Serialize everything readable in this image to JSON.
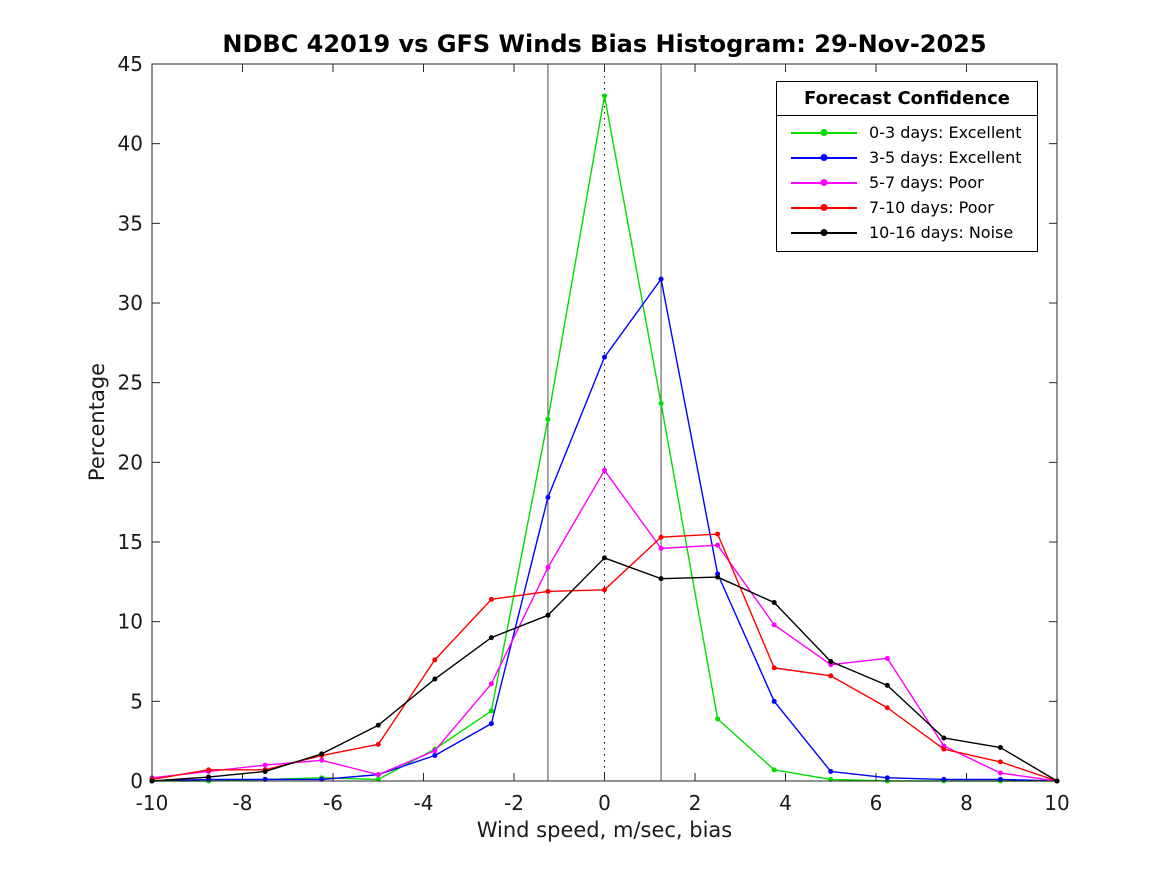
{
  "figure": {
    "title": "NDBC 42019 vs GFS Winds Bias Histogram: 29-Nov-2025",
    "xlabel": "Wind speed, m/sec, bias",
    "ylabel": "Percentage"
  },
  "legend": {
    "title": "Forecast Confidence",
    "entries": [
      {
        "label": "0-3 days: Excellent",
        "color": "#00dd00"
      },
      {
        "label": "3-5 days: Excellent",
        "color": "#0000ff"
      },
      {
        "label": "5-7 days: Poor",
        "color": "#ff00ff"
      },
      {
        "label": "7-10 days: Poor",
        "color": "#ff0000"
      },
      {
        "label": "10-16 days: Noise",
        "color": "#000000"
      }
    ]
  },
  "chart_data": {
    "type": "line",
    "title": "NDBC 42019 vs GFS Winds Bias Histogram: 29-Nov-2025",
    "xlabel": "Wind speed, m/sec, bias",
    "ylabel": "Percentage",
    "xlim": [
      -10,
      10
    ],
    "ylim": [
      0,
      45
    ],
    "xticks": [
      -10,
      -8,
      -6,
      -4,
      -2,
      0,
      2,
      4,
      6,
      8,
      10
    ],
    "yticks": [
      0,
      5,
      10,
      15,
      20,
      25,
      30,
      35,
      40,
      45
    ],
    "grid": false,
    "legend_title": "Forecast Confidence",
    "legend_position": "top-right",
    "x": [
      -10,
      -8.75,
      -7.5,
      -6.25,
      -5,
      -3.75,
      -2.5,
      -1.25,
      0,
      1.25,
      2.5,
      3.75,
      5,
      6.25,
      7.5,
      8.75,
      10
    ],
    "series": [
      {
        "name": "0-3 days: Excellent",
        "color": "#00dd00",
        "values": [
          0,
          0,
          0.1,
          0.2,
          0.1,
          2.0,
          4.4,
          22.7,
          43.0,
          23.7,
          3.9,
          0.7,
          0.1,
          0,
          0,
          0,
          0
        ]
      },
      {
        "name": "3-5 days: Excellent",
        "color": "#0000ff",
        "values": [
          0,
          0.1,
          0.1,
          0.1,
          0.4,
          1.6,
          3.6,
          17.8,
          26.6,
          31.5,
          13.0,
          5.0,
          0.6,
          0.2,
          0.1,
          0.1,
          0
        ]
      },
      {
        "name": "5-7 days: Poor",
        "color": "#ff00ff",
        "values": [
          0.2,
          0.6,
          1.0,
          1.3,
          0.4,
          1.9,
          6.1,
          13.4,
          19.5,
          14.6,
          14.8,
          9.8,
          7.3,
          7.7,
          2.2,
          0.5,
          0
        ]
      },
      {
        "name": "7-10 days: Poor",
        "color": "#ff0000",
        "values": [
          0.1,
          0.7,
          0.7,
          1.6,
          2.3,
          7.6,
          11.4,
          11.9,
          12.0,
          15.3,
          15.5,
          7.1,
          6.6,
          4.6,
          2.0,
          1.2,
          0
        ]
      },
      {
        "name": "10-16 days: Noise",
        "color": "#000000",
        "values": [
          0,
          0.25,
          0.6,
          1.7,
          3.5,
          6.4,
          9.0,
          10.4,
          14.0,
          12.7,
          12.8,
          11.2,
          7.5,
          6.0,
          2.7,
          2.1,
          0
        ]
      }
    ],
    "reference_lines": [
      {
        "x": -1.25,
        "style": "solid"
      },
      {
        "x": 0,
        "style": "dotted"
      },
      {
        "x": 1.25,
        "style": "solid"
      }
    ]
  }
}
